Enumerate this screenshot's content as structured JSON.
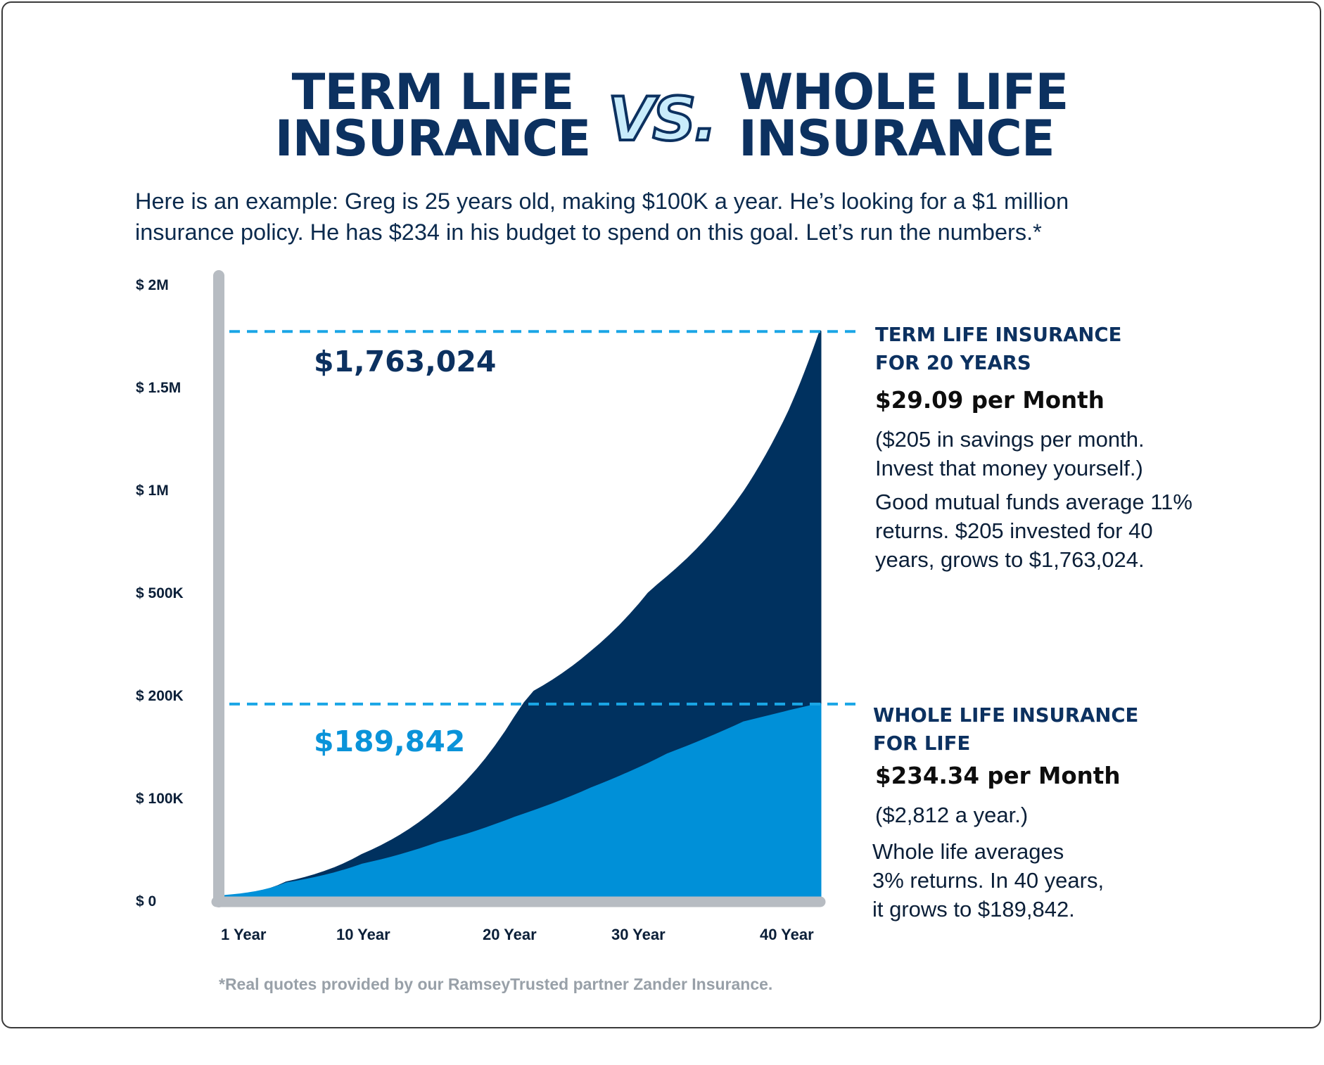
{
  "title": {
    "left_line1": "TERM LIFE",
    "left_line2": "INSURANCE",
    "vs": "VS.",
    "right_line1": "WHOLE LIFE",
    "right_line2": "INSURANCE"
  },
  "intro": {
    "line1": "Here is an example: Greg is 25 years old, making $100K a year. He’s looking for a $1 million",
    "line2": "insurance policy. He has $234 in his budget to spend on this goal. Let’s run the numbers.*"
  },
  "colors": {
    "term": "#00315f",
    "whole": "#0090d8",
    "dashed_line": "#1aa6e6",
    "axis": "#b7bcc2",
    "title": "#0c3160"
  },
  "chart_data": {
    "type": "area",
    "y_tick_labels": [
      "$ 2M",
      "$ 1.5M",
      "$ 1M",
      "$ 500K",
      "$ 200K",
      "$ 100K",
      "$ 0"
    ],
    "x_tick_labels": [
      "1 Year",
      "10 Year",
      "20 Year",
      "30 Year",
      "40 Year"
    ],
    "x": [
      1,
      5,
      10,
      15,
      20,
      25,
      30,
      35,
      38,
      40
    ],
    "series": [
      {
        "name": "TERM LIFE INSURANCE FOR 20 YEARS",
        "color": "#00315f",
        "values": [
          2460,
          16000,
          43000,
          89000,
          177000,
          322000,
          568000,
          980000,
          1380000,
          1763024
        ]
      },
      {
        "name": "WHOLE LIFE INSURANCE FOR LIFE",
        "color": "#0090d8",
        "values": [
          2900,
          15100,
          33400,
          54600,
          79200,
          107700,
          140800,
          172000,
          183000,
          189842
        ]
      }
    ],
    "annotations": [
      {
        "label": "$1,763,024",
        "value": 1763024
      },
      {
        "label": "$189,842",
        "value": 189842
      }
    ]
  },
  "term_panel": {
    "heading1": "TERM LIFE INSURANCE",
    "heading2": "FOR 20 YEARS",
    "price": "$29.09 per Month",
    "savings1": "($205 in savings per month.",
    "savings2": "Invest that money yourself.)",
    "note1": "Good mutual funds average 11%",
    "note2": "returns. $205 invested for 40",
    "note3": "years, grows to $1,763,024."
  },
  "whole_panel": {
    "heading1": "WHOLE LIFE INSURANCE",
    "heading2": "FOR LIFE",
    "price": "$234.34 per Month",
    "yearly": "($2,812 a year.)",
    "note1": "Whole life averages",
    "note2": "3% returns. In 40 years,",
    "note3": "it grows to $189,842."
  },
  "footnote": "*Real quotes provided by our RamseyTrusted partner Zander Insurance."
}
